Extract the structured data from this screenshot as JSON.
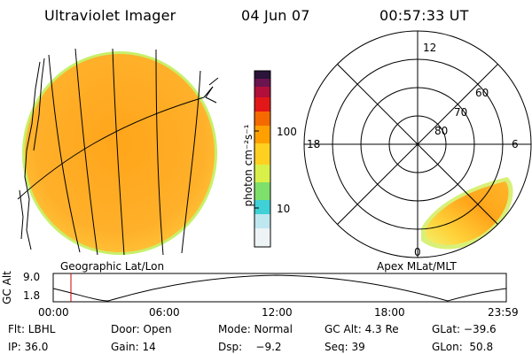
{
  "header": {
    "title": "Ultraviolet Imager",
    "date": "04 Jun 07",
    "time": "00:57:33 UT"
  },
  "colorbar": {
    "label": "photon cm⁻²s⁻¹",
    "ticks": [
      "100",
      "10"
    ],
    "scale": "log",
    "colors": [
      "#eef3f6",
      "#bfe7f0",
      "#3fd1d6",
      "#7ee06a",
      "#d9ef4a",
      "#ffd020",
      "#ffa000",
      "#f56a00",
      "#e21818",
      "#b0103a",
      "#6a1450",
      "#2a143a"
    ]
  },
  "left_panel": {
    "label": "Geographic Lat/Lon"
  },
  "polar_panel": {
    "label": "Apex MLat/MLT",
    "mlt_labels": [
      "12",
      "18",
      "6",
      "0"
    ],
    "mlat_labels": [
      "60",
      "70",
      "80"
    ]
  },
  "timeline": {
    "ylabel": "GC Alt",
    "yticks": [
      "9.0",
      "1.8"
    ],
    "xticks": [
      "00:00",
      "06:00",
      "12:00",
      "18:00",
      "23:59"
    ],
    "marker_fraction": 0.04
  },
  "status": {
    "row1": {
      "flt": "Flt: LBHL",
      "door": "Door: Open",
      "mode": "Mode: Normal",
      "gcalt": "GC Alt: 4.3 Re",
      "glat": "GLat: −39.6"
    },
    "row2": {
      "ip": "IP: 36.0",
      "gain": "Gain: 14",
      "dsp": "Dsp:    −9.2",
      "seq": "Seq: 39",
      "glon": "GLon:  50.8"
    }
  },
  "colors": {
    "disk_fill": "#ffad1f",
    "disk_edge": "#e0e83a",
    "oval_fill": "#ffa010",
    "timeline_marker": "#cc0000"
  }
}
